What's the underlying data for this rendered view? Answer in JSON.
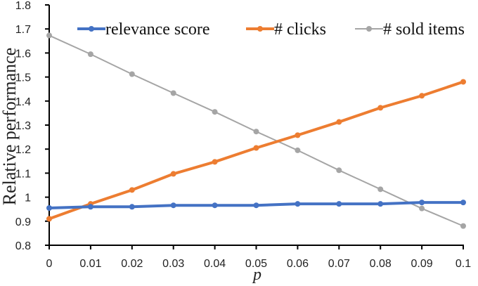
{
  "chart_data": {
    "type": "line",
    "title": "",
    "xlabel": "p",
    "ylabel": "Relative performance",
    "x": [
      0,
      0.01,
      0.02,
      0.03,
      0.04,
      0.05,
      0.06,
      0.07,
      0.08,
      0.09,
      0.1
    ],
    "x_tick_labels": [
      "0",
      "0.01",
      "0.02",
      "0.03",
      "0.04",
      "0.05",
      "0.06",
      "0.07",
      "0.08",
      "0.09",
      "0.1"
    ],
    "y_tick_labels": [
      "0.8",
      "0.9",
      "1",
      "1.1",
      "1.2",
      "1.3",
      "1.4",
      "1.5",
      "1.6",
      "1.7",
      "1.8"
    ],
    "xlim": [
      0,
      0.1
    ],
    "ylim": [
      0.8,
      1.8
    ],
    "grid": false,
    "legend_position": "top",
    "series": [
      {
        "name": "relevance score",
        "color": "#4472C4",
        "values": [
          0.955,
          0.96,
          0.96,
          0.966,
          0.966,
          0.966,
          0.972,
          0.972,
          0.972,
          0.978,
          0.978
        ]
      },
      {
        "name": "# clicks",
        "color": "#ED7D31",
        "values": [
          0.91,
          0.972,
          1.03,
          1.097,
          1.147,
          1.205,
          1.258,
          1.313,
          1.372,
          1.422,
          1.48
        ]
      },
      {
        "name": "# sold items",
        "color": "#A5A5A5",
        "values": [
          1.673,
          1.595,
          1.512,
          1.433,
          1.355,
          1.273,
          1.195,
          1.112,
          1.033,
          0.953,
          0.88
        ]
      }
    ]
  }
}
